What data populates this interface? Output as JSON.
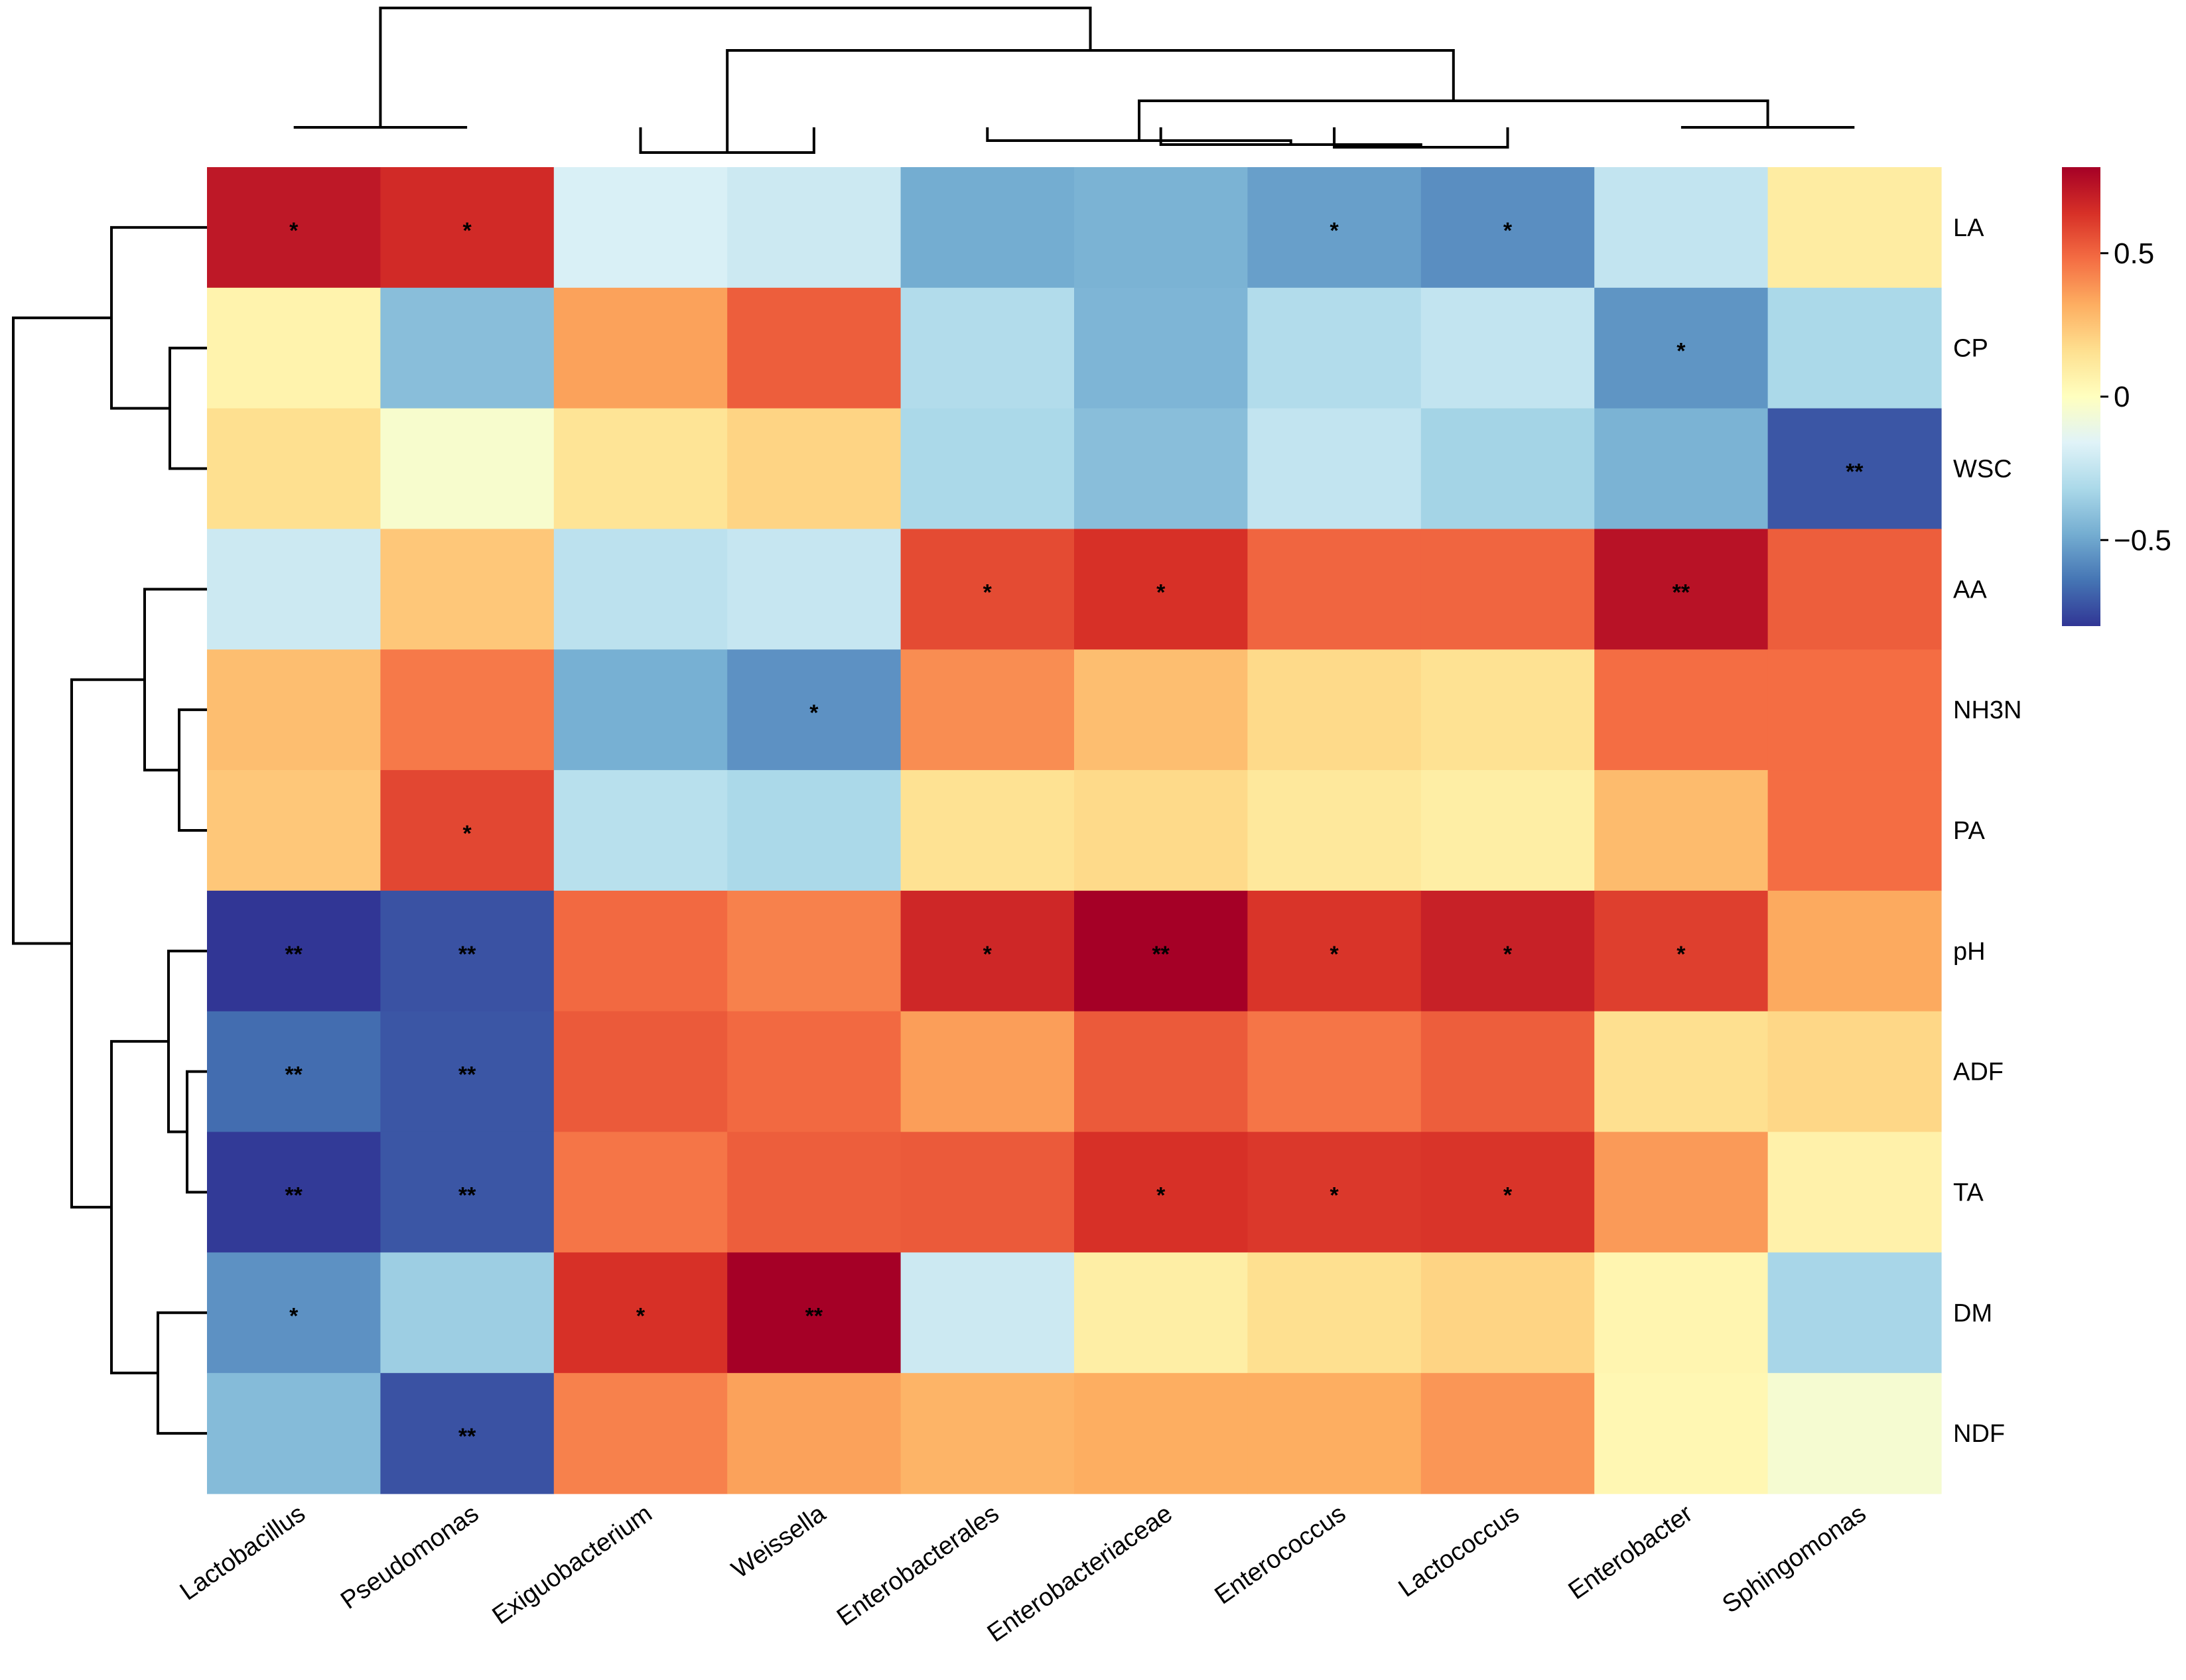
{
  "chart_data": {
    "type": "heatmap",
    "title": "",
    "columns": [
      "Lactobacillus",
      "Pseudomonas",
      "Exiguobacterium",
      "Weissella",
      "Enterobacterales",
      "Enterobacteriaceae",
      "Enterococcus",
      "Lactococcus",
      "Enterobacter",
      "Sphingomonas"
    ],
    "rows": [
      "LA",
      "CP",
      "WSC",
      "AA",
      "NH3N",
      "PA",
      "pH",
      "ADF",
      "TA",
      "DM",
      "NDF"
    ],
    "values": [
      [
        0.72,
        0.66,
        -0.18,
        -0.22,
        -0.48,
        -0.46,
        -0.52,
        -0.57,
        -0.25,
        0.1
      ],
      [
        0.06,
        -0.42,
        0.35,
        0.52,
        -0.3,
        -0.45,
        -0.3,
        -0.25,
        -0.55,
        -0.32
      ],
      [
        0.16,
        -0.04,
        0.14,
        0.2,
        -0.32,
        -0.42,
        -0.25,
        -0.34,
        -0.46,
        -0.72
      ],
      [
        -0.22,
        0.24,
        -0.27,
        -0.24,
        0.57,
        0.64,
        0.5,
        0.5,
        0.74,
        0.52
      ],
      [
        0.27,
        0.45,
        -0.47,
        -0.56,
        0.4,
        0.27,
        0.18,
        0.15,
        0.48,
        0.48
      ],
      [
        0.24,
        0.58,
        -0.28,
        -0.32,
        0.15,
        0.18,
        0.12,
        0.09,
        0.28,
        0.48
      ],
      [
        -0.8,
        -0.73,
        0.49,
        0.43,
        0.67,
        0.82,
        0.63,
        0.69,
        0.6,
        0.33
      ],
      [
        -0.66,
        -0.72,
        0.53,
        0.49,
        0.36,
        0.53,
        0.46,
        0.52,
        0.16,
        0.19
      ],
      [
        -0.79,
        -0.72,
        0.46,
        0.52,
        0.53,
        0.64,
        0.62,
        0.63,
        0.37,
        0.07
      ],
      [
        -0.56,
        -0.36,
        0.64,
        0.81,
        -0.22,
        0.09,
        0.16,
        0.2,
        0.05,
        -0.33
      ],
      [
        -0.43,
        -0.73,
        0.43,
        0.35,
        0.3,
        0.32,
        0.32,
        0.38,
        0.04,
        -0.05
      ]
    ],
    "significance": [
      [
        "*",
        "*",
        "",
        "",
        "",
        "",
        "*",
        "*",
        "",
        ""
      ],
      [
        "",
        "",
        "",
        "",
        "",
        "",
        "",
        "",
        "*",
        ""
      ],
      [
        "",
        "",
        "",
        "",
        "",
        "",
        "",
        "",
        "",
        "**"
      ],
      [
        "",
        "",
        "",
        "",
        "*",
        "*",
        "",
        "",
        "**",
        ""
      ],
      [
        "",
        "",
        "",
        "*",
        "",
        "",
        "",
        "",
        "",
        ""
      ],
      [
        "",
        "*",
        "",
        "",
        "",
        "",
        "",
        "",
        "",
        ""
      ],
      [
        "**",
        "**",
        "",
        "",
        "*",
        "**",
        "*",
        "*",
        "*",
        ""
      ],
      [
        "**",
        "**",
        "",
        "",
        "",
        "",
        "",
        "",
        "",
        ""
      ],
      [
        "**",
        "**",
        "",
        "",
        "",
        "*",
        "*",
        "*",
        "",
        ""
      ],
      [
        "*",
        "",
        "*",
        "**",
        "",
        "",
        "",
        "",
        "",
        ""
      ],
      [
        "",
        "**",
        "",
        "",
        "",
        "",
        "",
        "",
        "",
        ""
      ]
    ],
    "color_range": [
      -0.8,
      0.8
    ],
    "color_scale": [
      "#313695",
      "#4575b4",
      "#74add1",
      "#abd9e9",
      "#e0f3f8",
      "#ffffbf",
      "#fee090",
      "#fdae61",
      "#f46d43",
      "#d73027",
      "#a50026"
    ],
    "legend": {
      "ticks": [
        0.5,
        0,
        -0.5
      ],
      "tick_labels": [
        "0.5",
        "0",
        "−0.5"
      ],
      "placement": "right"
    },
    "row_dendrogram": true,
    "column_dendrogram": true
  }
}
